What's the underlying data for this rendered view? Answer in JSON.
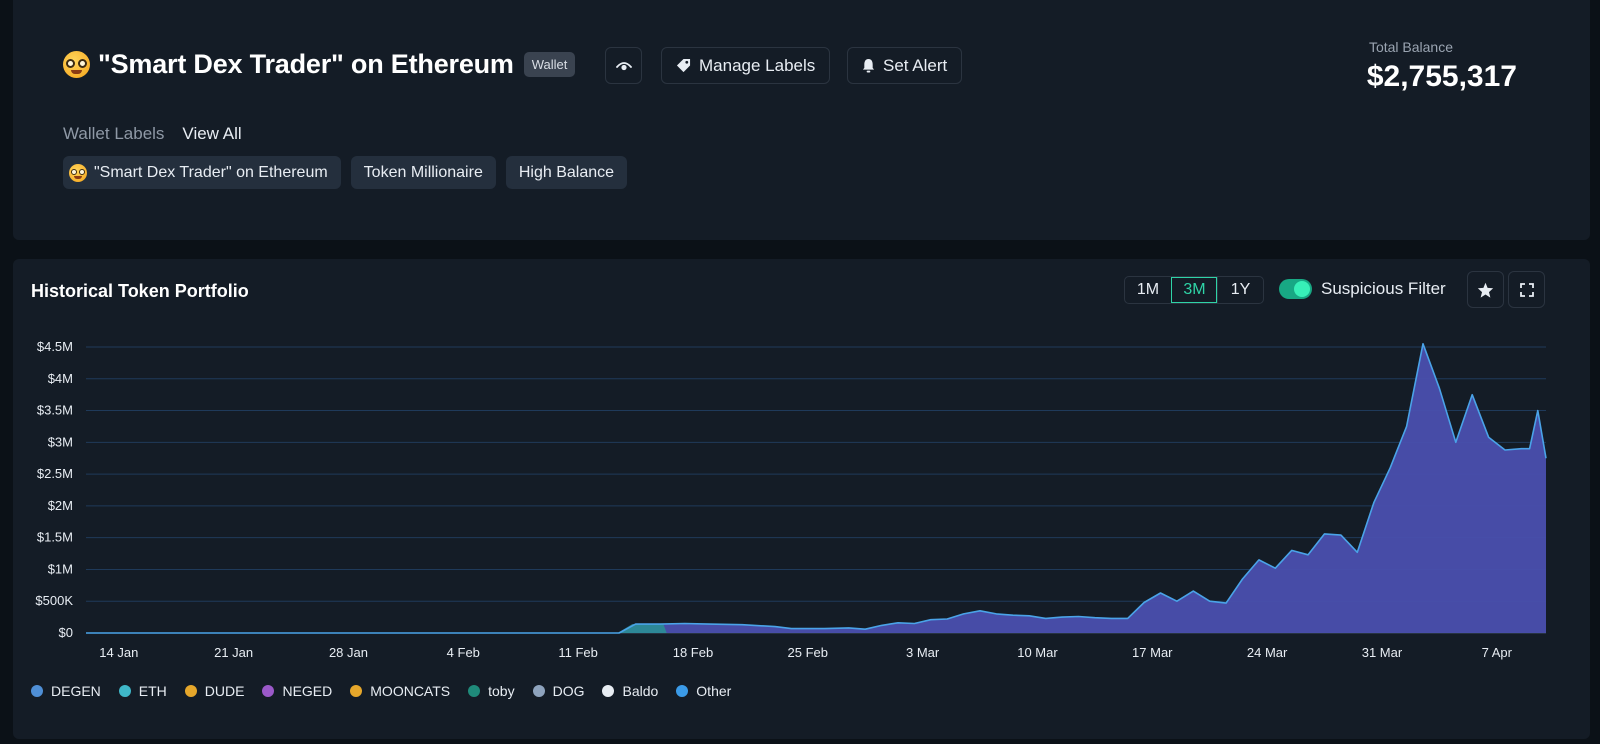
{
  "header": {
    "title": "\"Smart Dex Trader\" on Ethereum",
    "badge": "Wallet",
    "manage_labels": "Manage Labels",
    "set_alert": "Set Alert",
    "balance_label": "Total Balance",
    "balance_value": "$2,755,317",
    "wallet_labels_heading": "Wallet Labels",
    "view_all": "View All",
    "chips": [
      "\"Smart Dex Trader\" on Ethereum",
      "Token Millionaire",
      "High Balance"
    ]
  },
  "portfolio": {
    "title": "Historical Token Portfolio",
    "ranges": [
      "1M",
      "3M",
      "1Y"
    ],
    "active_range": "3M",
    "filter_label": "Suspicious Filter",
    "filter_on": true
  },
  "colors": {
    "area_fill": "#4a4fae",
    "area_line": "#4aa3e8",
    "eth_band": "#2a8f96",
    "accent": "#2fd4a7"
  },
  "chart_data": {
    "type": "area",
    "title": "Historical Token Portfolio",
    "xlabel": "",
    "ylabel": "",
    "ylim": [
      0,
      4500000
    ],
    "y_ticks": [
      0,
      500000,
      1000000,
      1500000,
      2000000,
      2500000,
      3000000,
      3500000,
      4000000,
      4500000
    ],
    "y_tick_labels": [
      "$0",
      "$500K",
      "$1M",
      "$1.5M",
      "$2M",
      "$2.5M",
      "$3M",
      "$3.5M",
      "$4M",
      "$4.5M"
    ],
    "x_tick_labels": [
      "14 Jan",
      "21 Jan",
      "28 Jan",
      "4 Feb",
      "11 Feb",
      "18 Feb",
      "25 Feb",
      "3 Mar",
      "10 Mar",
      "17 Mar",
      "24 Mar",
      "31 Mar",
      "7 Apr"
    ],
    "x_start": "2024-01-12",
    "x_tick_days": [
      2,
      9,
      16,
      23,
      30,
      37,
      44,
      51,
      58,
      65,
      72,
      79,
      86
    ],
    "x_max_days": 89,
    "grid": true,
    "legend": [
      "DEGEN",
      "ETH",
      "DUDE",
      "NEGED",
      "MOONCATS",
      "toby",
      "DOG",
      "Baldo",
      "Other"
    ],
    "legend_colors": [
      "#4f8fd6",
      "#3fb7c8",
      "#e6a72b",
      "#9b59c9",
      "#e6a72b",
      "#1f8a7a",
      "#8ea3bd",
      "#e8edf3",
      "#3b9be8"
    ],
    "legend_position": "bottom-left",
    "series": [
      {
        "name": "Total",
        "points": [
          [
            0,
            0
          ],
          [
            30,
            0
          ],
          [
            32.5,
            0
          ],
          [
            33.5,
            140000
          ],
          [
            35,
            140000
          ],
          [
            36.5,
            150000
          ],
          [
            38,
            140000
          ],
          [
            40,
            130000
          ],
          [
            42,
            100000
          ],
          [
            43,
            70000
          ],
          [
            45,
            70000
          ],
          [
            46.5,
            80000
          ],
          [
            47.5,
            60000
          ],
          [
            48.5,
            120000
          ],
          [
            49.5,
            160000
          ],
          [
            50.5,
            150000
          ],
          [
            51.5,
            210000
          ],
          [
            52.5,
            220000
          ],
          [
            53.5,
            300000
          ],
          [
            54.5,
            350000
          ],
          [
            55.5,
            300000
          ],
          [
            56.5,
            280000
          ],
          [
            57.5,
            270000
          ],
          [
            58.5,
            230000
          ],
          [
            59.5,
            250000
          ],
          [
            60.5,
            260000
          ],
          [
            61.5,
            240000
          ],
          [
            62.5,
            230000
          ],
          [
            63.5,
            230000
          ],
          [
            64.5,
            480000
          ],
          [
            65.5,
            630000
          ],
          [
            66.5,
            500000
          ],
          [
            67.5,
            660000
          ],
          [
            68.5,
            500000
          ],
          [
            69.5,
            470000
          ],
          [
            70.5,
            850000
          ],
          [
            71.5,
            1150000
          ],
          [
            72.5,
            1020000
          ],
          [
            73.5,
            1300000
          ],
          [
            74.5,
            1230000
          ],
          [
            75.5,
            1560000
          ],
          [
            76.5,
            1540000
          ],
          [
            77.5,
            1270000
          ],
          [
            78.5,
            2050000
          ],
          [
            79.5,
            2600000
          ],
          [
            80.5,
            3250000
          ],
          [
            81.5,
            4550000
          ],
          [
            82.5,
            3850000
          ],
          [
            83.5,
            3000000
          ],
          [
            84.5,
            3750000
          ],
          [
            85.5,
            3080000
          ],
          [
            86.5,
            2880000
          ],
          [
            87.5,
            2900000
          ],
          [
            88,
            2900000
          ],
          [
            88.5,
            3500000
          ],
          [
            89,
            2750000
          ]
        ]
      },
      {
        "name": "ETH",
        "points": [
          [
            32.4,
            0
          ],
          [
            33.3,
            140000
          ],
          [
            35.2,
            140000
          ],
          [
            35.4,
            0
          ]
        ]
      }
    ]
  }
}
